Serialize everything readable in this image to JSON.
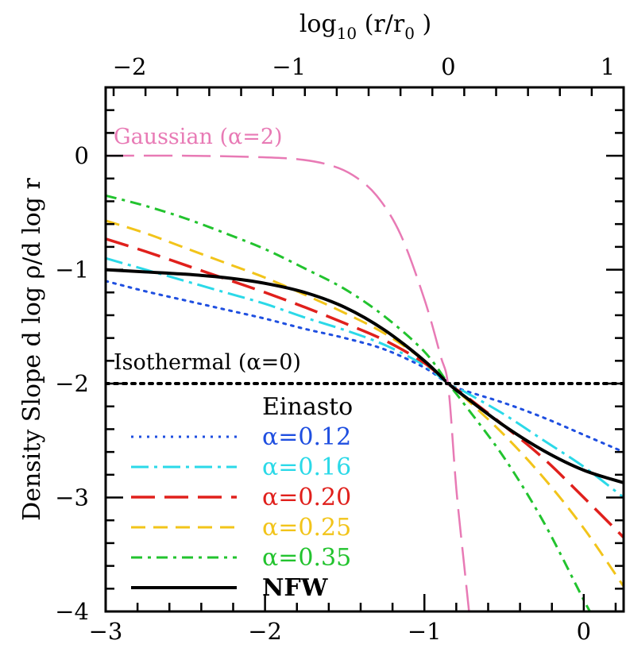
{
  "chart_data": {
    "type": "line",
    "title": "",
    "xlabel": "",
    "ylabel": "Density Slope   d log ρ/d log r",
    "top_xlabel": "log10 (r/r0 )",
    "xlim": [
      -3,
      0.25
    ],
    "ylim": [
      -4,
      0.6
    ],
    "top_xlim": [
      -2.15,
      1.1
    ],
    "x_ticks": [
      "-3",
      "-2",
      "-1",
      "0"
    ],
    "x_tick_values": [
      -3,
      -2,
      -1,
      0
    ],
    "y_ticks": [
      "0",
      "-1",
      "-2",
      "-3",
      "-4"
    ],
    "y_tick_values": [
      0,
      -1,
      -2,
      -3,
      -4
    ],
    "top_ticks": [
      "-2",
      "-1",
      "0",
      "1"
    ],
    "top_tick_values": [
      -2,
      -1,
      0,
      1
    ],
    "grid": false,
    "legend_position": "bottom-left",
    "legend_title": "Einasto",
    "annotations": [
      {
        "text": "Gaussian (α=2)",
        "x": -2.95,
        "y": 0.12,
        "color": "#e87ab5"
      },
      {
        "text": "Isothermal (α=0)",
        "x": -2.95,
        "y": -1.86,
        "color": "#000000"
      }
    ],
    "series": [
      {
        "name": "α=0.12",
        "color": "#1f4fe0",
        "dash": "dotted",
        "width": 3,
        "x": [
          -3,
          -2.75,
          -2.5,
          -2.25,
          -2,
          -1.75,
          -1.5,
          -1.25,
          -1,
          -0.85,
          -0.75,
          -0.5,
          -0.25,
          0,
          0.25
        ],
        "y": [
          -1.1,
          -1.19,
          -1.27,
          -1.35,
          -1.43,
          -1.52,
          -1.6,
          -1.7,
          -1.86,
          -2.0,
          -2.06,
          -2.17,
          -2.3,
          -2.45,
          -2.6
        ]
      },
      {
        "name": "α=0.16",
        "color": "#2bd9e8",
        "dash": "dashdot",
        "width": 3,
        "x": [
          -3,
          -2.75,
          -2.5,
          -2.25,
          -2,
          -1.75,
          -1.5,
          -1.25,
          -1,
          -0.85,
          -0.75,
          -0.5,
          -0.25,
          0,
          0.25
        ],
        "y": [
          -0.9,
          -1.0,
          -1.1,
          -1.2,
          -1.3,
          -1.42,
          -1.53,
          -1.66,
          -1.84,
          -2.0,
          -2.07,
          -2.27,
          -2.5,
          -2.73,
          -3.0
        ]
      },
      {
        "name": "α=0.20",
        "color": "#e0201c",
        "dash": "longdash",
        "width": 3.5,
        "x": [
          -3,
          -2.75,
          -2.5,
          -2.25,
          -2,
          -1.75,
          -1.5,
          -1.25,
          -1,
          -0.85,
          -0.75,
          -0.5,
          -0.25,
          0,
          0.25
        ],
        "y": [
          -0.73,
          -0.84,
          -0.96,
          -1.08,
          -1.2,
          -1.33,
          -1.47,
          -1.62,
          -1.82,
          -2.0,
          -2.1,
          -2.37,
          -2.66,
          -3.0,
          -3.35
        ]
      },
      {
        "name": "α=0.25",
        "color": "#f2c41a",
        "dash": "dashed",
        "width": 3,
        "x": [
          -3,
          -2.75,
          -2.5,
          -2.25,
          -2,
          -1.75,
          -1.5,
          -1.25,
          -1,
          -0.85,
          -0.75,
          -0.5,
          -0.25,
          0,
          0.25
        ],
        "y": [
          -0.57,
          -0.68,
          -0.81,
          -0.94,
          -1.07,
          -1.22,
          -1.38,
          -1.56,
          -1.8,
          -2.0,
          -2.12,
          -2.45,
          -2.83,
          -3.27,
          -3.78
        ]
      },
      {
        "name": "α=0.35",
        "color": "#22c32e",
        "dash": "dashdot2",
        "width": 3,
        "x": [
          -3,
          -2.75,
          -2.5,
          -2.25,
          -2,
          -1.75,
          -1.5,
          -1.25,
          -1,
          -0.85,
          -0.75,
          -0.5,
          -0.25,
          0,
          0.08
        ],
        "y": [
          -0.35,
          -0.44,
          -0.55,
          -0.68,
          -0.82,
          -0.99,
          -1.17,
          -1.41,
          -1.72,
          -2.0,
          -2.18,
          -2.65,
          -3.22,
          -3.9,
          -4.1
        ]
      },
      {
        "name": "NFW",
        "color": "#000000",
        "dash": "solid",
        "width": 4,
        "x": [
          -3,
          -2.75,
          -2.5,
          -2.25,
          -2,
          -1.75,
          -1.5,
          -1.25,
          -1,
          -0.85,
          -0.75,
          -0.5,
          -0.25,
          0,
          0.25
        ],
        "y": [
          -1.0,
          -1.02,
          -1.04,
          -1.07,
          -1.12,
          -1.2,
          -1.33,
          -1.53,
          -1.8,
          -2.0,
          -2.11,
          -2.37,
          -2.59,
          -2.76,
          -2.87
        ]
      },
      {
        "name": "Gaussian (α=2)",
        "color": "#e87ab5",
        "dash": "longdash-thin",
        "width": 2.5,
        "legend": false,
        "x": [
          -3,
          -2.5,
          -2.1,
          -1.8,
          -1.6,
          -1.45,
          -1.3,
          -1.15,
          -1.0,
          -0.9,
          -0.85,
          -0.8,
          -0.75,
          -0.72
        ],
        "y": [
          0.0,
          0.0,
          -0.01,
          -0.03,
          -0.08,
          -0.17,
          -0.35,
          -0.69,
          -1.26,
          -1.75,
          -2.03,
          -2.92,
          -3.6,
          -4.0
        ]
      },
      {
        "name": "Isothermal (α=0)",
        "color": "#000000",
        "dash": "dotted-bold",
        "width": 4,
        "legend": false,
        "x": [
          -3,
          0.25
        ],
        "y": [
          -2,
          -2
        ]
      }
    ]
  }
}
